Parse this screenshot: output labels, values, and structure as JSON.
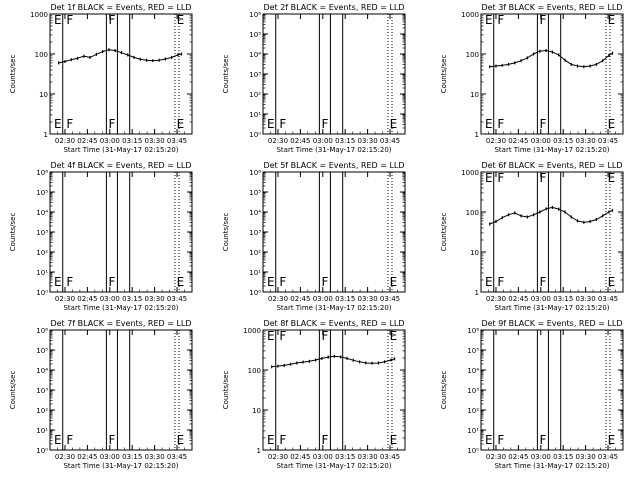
{
  "page": {
    "x_tick_labels": [
      "02:30",
      "02:45",
      "03:00",
      "03:15",
      "03:30",
      "03:45"
    ],
    "xlabel": "Start Time (31-May-17 02:15:20)",
    "ylabel": "Counts/sec"
  },
  "chart_data": [
    {
      "type": "line",
      "title": "Det 1f BLACK = Events, RED = LLD",
      "ylim": [
        1,
        1000
      ],
      "yscale": "log",
      "y_tick_labels": [
        "1",
        "10",
        "100",
        "1000"
      ],
      "x_range_hours": [
        2.333,
        3.917
      ],
      "markers": {
        "solid": [
          2.475,
          2.962,
          3.085,
          3.222
        ],
        "dotted": [
          3.727,
          3.772
        ],
        "letters": [
          {
            "t": "E",
            "x": 2.378
          },
          {
            "t": "F",
            "x": 2.515
          },
          {
            "t": "F",
            "x": 2.985
          },
          {
            "t": "E",
            "x": 3.745
          }
        ]
      },
      "series": [
        {
          "x": [
            2.43,
            2.5,
            2.57,
            2.64,
            2.71,
            2.78,
            2.85,
            2.92,
            2.99,
            3.06,
            3.13,
            3.2,
            3.27,
            3.34,
            3.41,
            3.48,
            3.55,
            3.62,
            3.69,
            3.76,
            3.8
          ],
          "values": [
            60,
            65,
            72,
            78,
            88,
            82,
            98,
            115,
            128,
            122,
            108,
            95,
            82,
            74,
            70,
            68,
            70,
            75,
            82,
            95,
            100
          ]
        }
      ]
    },
    {
      "type": "line",
      "title": "Det 2f BLACK = Events, RED = LLD",
      "ylim": [
        1,
        1000000
      ],
      "yscale": "log",
      "y_tick_labels": [
        "10⁰",
        "10¹",
        "10²",
        "10³",
        "10⁴",
        "10⁵",
        "10⁶"
      ],
      "x_range_hours": [
        2.333,
        3.917
      ],
      "markers": {
        "solid": [
          2.475,
          2.962,
          3.085,
          3.222
        ],
        "dotted": [
          3.727,
          3.772
        ],
        "letters": [
          {
            "t": "E",
            "x": 2.378
          },
          {
            "t": "F",
            "x": 2.515
          },
          {
            "t": "F",
            "x": 2.985
          },
          {
            "t": "E",
            "x": 3.745
          }
        ]
      },
      "series": []
    },
    {
      "type": "line",
      "title": "Det 3f BLACK = Events, RED = LLD",
      "ylim": [
        1,
        1000
      ],
      "yscale": "log",
      "y_tick_labels": [
        "1",
        "10",
        "100",
        "1000"
      ],
      "x_range_hours": [
        2.333,
        3.917
      ],
      "markers": {
        "solid": [
          2.475,
          2.962,
          3.085,
          3.222
        ],
        "dotted": [
          3.727,
          3.772
        ],
        "letters": [
          {
            "t": "E",
            "x": 2.378
          },
          {
            "t": "F",
            "x": 2.515
          },
          {
            "t": "F",
            "x": 2.985
          },
          {
            "t": "E",
            "x": 3.745
          }
        ]
      },
      "series": [
        {
          "x": [
            2.43,
            2.5,
            2.57,
            2.64,
            2.71,
            2.78,
            2.85,
            2.92,
            2.99,
            3.06,
            3.13,
            3.2,
            3.27,
            3.34,
            3.41,
            3.48,
            3.55,
            3.62,
            3.69,
            3.76,
            3.8
          ],
          "values": [
            48,
            50,
            52,
            55,
            60,
            68,
            80,
            100,
            118,
            122,
            112,
            95,
            70,
            55,
            50,
            48,
            50,
            55,
            68,
            92,
            105
          ]
        }
      ]
    },
    {
      "type": "line",
      "title": "Det 4f BLACK = Events, RED = LLD",
      "ylim": [
        1,
        1000000
      ],
      "yscale": "log",
      "y_tick_labels": [
        "10⁰",
        "10¹",
        "10²",
        "10³",
        "10⁴",
        "10⁵",
        "10⁶"
      ],
      "x_range_hours": [
        2.333,
        3.917
      ],
      "markers": {
        "solid": [
          2.475,
          2.962,
          3.085,
          3.222
        ],
        "dotted": [
          3.727,
          3.772
        ],
        "letters": [
          {
            "t": "E",
            "x": 2.378
          },
          {
            "t": "F",
            "x": 2.515
          },
          {
            "t": "F",
            "x": 2.985
          },
          {
            "t": "E",
            "x": 3.745
          }
        ]
      },
      "series": []
    },
    {
      "type": "line",
      "title": "Det 5f BLACK = Events, RED = LLD",
      "ylim": [
        1,
        1000000
      ],
      "yscale": "log",
      "y_tick_labels": [
        "10⁰",
        "10¹",
        "10²",
        "10³",
        "10⁴",
        "10⁵",
        "10⁶"
      ],
      "x_range_hours": [
        2.333,
        3.917
      ],
      "markers": {
        "solid": [
          2.475,
          2.962,
          3.085,
          3.222
        ],
        "dotted": [
          3.727,
          3.772
        ],
        "letters": [
          {
            "t": "E",
            "x": 2.378
          },
          {
            "t": "F",
            "x": 2.515
          },
          {
            "t": "F",
            "x": 2.985
          },
          {
            "t": "E",
            "x": 3.745
          }
        ]
      },
      "series": []
    },
    {
      "type": "line",
      "title": "Det 6f BLACK = Events, RED = LLD",
      "ylim": [
        1,
        1000
      ],
      "yscale": "log",
      "y_tick_labels": [
        "1",
        "10",
        "100",
        "1000"
      ],
      "x_range_hours": [
        2.333,
        3.917
      ],
      "markers": {
        "solid": [
          2.475,
          2.962,
          3.085,
          3.222
        ],
        "dotted": [
          3.727,
          3.772
        ],
        "letters": [
          {
            "t": "E",
            "x": 2.378
          },
          {
            "t": "F",
            "x": 2.515
          },
          {
            "t": "F",
            "x": 2.985
          },
          {
            "t": "E",
            "x": 3.745
          }
        ]
      },
      "series": [
        {
          "x": [
            2.43,
            2.5,
            2.57,
            2.64,
            2.71,
            2.78,
            2.85,
            2.92,
            2.99,
            3.06,
            3.13,
            3.2,
            3.27,
            3.34,
            3.41,
            3.48,
            3.55,
            3.62,
            3.69,
            3.76,
            3.8
          ],
          "values": [
            50,
            58,
            72,
            85,
            95,
            80,
            75,
            85,
            100,
            120,
            130,
            118,
            100,
            75,
            60,
            55,
            58,
            65,
            80,
            100,
            110
          ]
        }
      ]
    },
    {
      "type": "line",
      "title": "Det 7f BLACK = Events, RED = LLD",
      "ylim": [
        1,
        1000000
      ],
      "yscale": "log",
      "y_tick_labels": [
        "10⁰",
        "10¹",
        "10²",
        "10³",
        "10⁴",
        "10⁵",
        "10⁶"
      ],
      "x_range_hours": [
        2.333,
        3.917
      ],
      "markers": {
        "solid": [
          2.475,
          2.962,
          3.085,
          3.222
        ],
        "dotted": [
          3.727,
          3.772
        ],
        "letters": [
          {
            "t": "E",
            "x": 2.378
          },
          {
            "t": "F",
            "x": 2.515
          },
          {
            "t": "F",
            "x": 2.985
          },
          {
            "t": "E",
            "x": 3.745
          }
        ]
      },
      "series": []
    },
    {
      "type": "line",
      "title": "Det 8f BLACK = Events, RED = LLD",
      "ylim": [
        1,
        1000
      ],
      "yscale": "log",
      "y_tick_labels": [
        "1",
        "10",
        "100",
        "1000"
      ],
      "x_range_hours": [
        2.333,
        3.917
      ],
      "markers": {
        "solid": [
          2.475,
          2.962,
          3.085,
          3.222
        ],
        "dotted": [
          3.727,
          3.772
        ],
        "letters": [
          {
            "t": "E",
            "x": 2.378
          },
          {
            "t": "F",
            "x": 2.515
          },
          {
            "t": "F",
            "x": 2.985
          },
          {
            "t": "E",
            "x": 3.745
          }
        ]
      },
      "series": [
        {
          "x": [
            2.43,
            2.5,
            2.57,
            2.64,
            2.71,
            2.78,
            2.85,
            2.92,
            2.99,
            3.06,
            3.13,
            3.2,
            3.27,
            3.34,
            3.41,
            3.48,
            3.55,
            3.62,
            3.69,
            3.76,
            3.8
          ],
          "values": [
            120,
            125,
            130,
            140,
            150,
            158,
            165,
            178,
            195,
            210,
            220,
            212,
            195,
            175,
            160,
            150,
            148,
            150,
            160,
            178,
            190
          ]
        }
      ]
    },
    {
      "type": "line",
      "title": "Det 9f BLACK = Events, RED = LLD",
      "ylim": [
        1,
        1000000
      ],
      "yscale": "log",
      "y_tick_labels": [
        "10⁰",
        "10¹",
        "10²",
        "10³",
        "10⁴",
        "10⁵",
        "10⁶"
      ],
      "x_range_hours": [
        2.333,
        3.917
      ],
      "markers": {
        "solid": [
          2.475,
          2.962,
          3.085,
          3.222
        ],
        "dotted": [
          3.727,
          3.772
        ],
        "letters": [
          {
            "t": "E",
            "x": 2.378
          },
          {
            "t": "F",
            "x": 2.515
          },
          {
            "t": "F",
            "x": 2.985
          },
          {
            "t": "E",
            "x": 3.745
          }
        ]
      },
      "series": []
    }
  ]
}
